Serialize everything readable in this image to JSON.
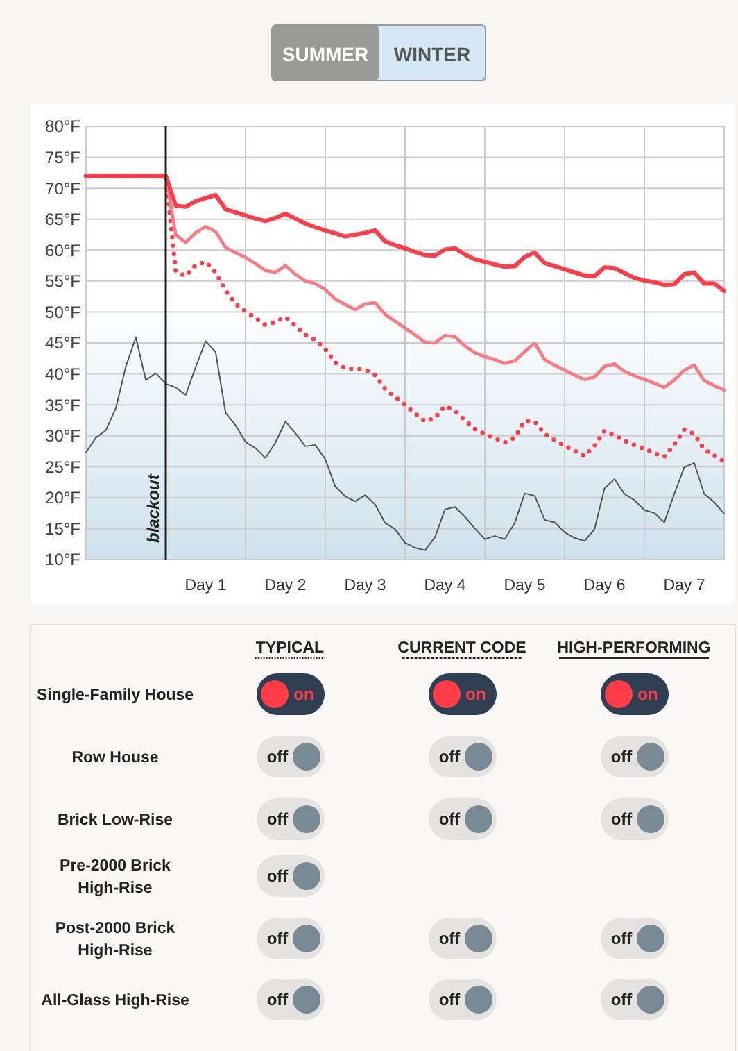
{
  "chart_data": [
    {
      "type": "line",
      "annotations": [
        "SUMMER",
        "WINTER",
        "blackout"
      ],
      "ylim": [
        10,
        80
      ],
      "categories": [
        null,
        null,
        null,
        null,
        null,
        null,
        null,
        null,
        null,
        null,
        null,
        null,
        "Day 1",
        null,
        null,
        null,
        null,
        null,
        null,
        null,
        "Day 2",
        null,
        null,
        null,
        null,
        null,
        null,
        null,
        "Day 3",
        null,
        null,
        null,
        null,
        null,
        null,
        null,
        "Day 4",
        null,
        null,
        null,
        null,
        null,
        null,
        null,
        "Day 5",
        null,
        null,
        null,
        null,
        null,
        null,
        null,
        "Day 6",
        null,
        null,
        null,
        null,
        null,
        null,
        null,
        "Day 7",
        null,
        null,
        null,
        null
      ],
      "yticks": [
        {
          "value": 10,
          "label": "10°F"
        },
        {
          "value": 15,
          "label": "15°F"
        },
        {
          "value": 20,
          "label": "20°F"
        },
        {
          "value": 25,
          "label": "25°F"
        },
        {
          "value": 30,
          "label": "30°F"
        },
        {
          "value": 35,
          "label": "35°F"
        },
        {
          "value": 40,
          "label": "40°F"
        },
        {
          "value": 45,
          "label": "45°F"
        },
        {
          "value": 50,
          "label": "50°F"
        },
        {
          "value": 55,
          "label": "55°F"
        },
        {
          "value": 60,
          "label": "60°F"
        },
        {
          "value": 65,
          "label": "65°F"
        },
        {
          "value": 70,
          "label": "70°F"
        },
        {
          "value": 75,
          "label": "75°F"
        },
        {
          "value": 80,
          "label": "80°F"
        }
      ],
      "grid": true,
      "series": [
        {
          "color": "#ff3c48",
          "line_style": "dotted",
          "values": [
            72,
            72,
            72,
            72,
            72,
            72,
            72,
            72,
            72,
            56.6,
            55.8,
            57.6,
            58.1,
            56.4,
            53.5,
            51.3,
            50.1,
            49.0,
            47.9,
            48.4,
            49.2,
            47.8,
            46.3,
            45.5,
            44.0,
            41.8,
            40.9,
            40.8,
            40.7,
            39.8,
            37.6,
            36.3,
            35.0,
            33.6,
            32.3,
            32.9,
            34.8,
            34.0,
            32.5,
            31.1,
            30.3,
            29.6,
            28.9,
            29.7,
            32.4,
            32.3,
            30.3,
            29.3,
            28.4,
            27.6,
            26.7,
            28.4,
            30.8,
            30.1,
            29.2,
            28.5,
            27.9,
            27.2,
            26.6,
            28.6,
            31.0,
            30.3,
            27.8,
            26.8,
            25.8
          ]
        },
        {
          "color": "#ff7880",
          "line_style": "dashed",
          "values": [
            72,
            72,
            72,
            72,
            72,
            72,
            72,
            72,
            72,
            62.5,
            61.2,
            62.8,
            63.8,
            63.0,
            60.4,
            59.6,
            58.8,
            57.8,
            56.7,
            56.4,
            57.5,
            56.1,
            55.0,
            54.6,
            53.6,
            52.1,
            51.2,
            50.4,
            51.3,
            51.5,
            49.6,
            48.5,
            47.4,
            46.3,
            45.1,
            45.0,
            46.2,
            46.0,
            44.5,
            43.4,
            42.8,
            42.3,
            41.7,
            42.1,
            43.6,
            45.0,
            42.3,
            41.4,
            40.6,
            39.8,
            39.1,
            39.5,
            41.2,
            41.6,
            40.4,
            39.7,
            39.1,
            38.5,
            37.8,
            39.0,
            40.6,
            41.4,
            38.9,
            38.1,
            37.4
          ]
        },
        {
          "color": "#ff3c48",
          "line_style": "solid",
          "values": [
            72,
            72,
            72,
            72,
            72,
            72,
            72,
            72,
            72,
            67.2,
            67.0,
            67.9,
            68.4,
            68.9,
            66.6,
            66.1,
            65.6,
            65.1,
            64.7,
            65.2,
            65.9,
            65.1,
            64.3,
            63.7,
            63.2,
            62.7,
            62.2,
            62.5,
            62.8,
            63.2,
            61.4,
            60.8,
            60.3,
            59.7,
            59.2,
            59.1,
            60.1,
            60.3,
            59.3,
            58.5,
            58.1,
            57.7,
            57.3,
            57.4,
            58.9,
            59.6,
            57.9,
            57.4,
            56.9,
            56.4,
            55.9,
            55.8,
            57.2,
            57.1,
            56.3,
            55.5,
            55.1,
            54.8,
            54.4,
            54.5,
            56.1,
            56.4,
            54.6,
            54.6,
            53.4
          ]
        },
        {
          "color": "#555555",
          "line_style": "solid",
          "values": [
            27.3,
            29.7,
            30.9,
            34.5,
            41.2,
            45.9,
            39.0,
            40.1,
            38.4,
            37.8,
            36.6,
            41.1,
            45.3,
            43.5,
            33.7,
            31.7,
            29.0,
            28.0,
            26.4,
            28.9,
            32.3,
            30.4,
            28.3,
            28.5,
            26.2,
            21.8,
            20.2,
            19.4,
            20.4,
            18.9,
            15.9,
            14.9,
            12.7,
            11.9,
            11.5,
            13.6,
            18.1,
            18.5,
            16.9,
            15.0,
            13.3,
            13.8,
            13.3,
            15.9,
            20.7,
            20.3,
            16.4,
            16.0,
            14.4,
            13.5,
            13.0,
            14.9,
            21.5,
            23.0,
            20.6,
            19.6,
            18.0,
            17.5,
            16.0,
            20.6,
            24.9,
            25.6,
            20.6,
            19.3,
            17.4
          ]
        }
      ]
    },
    {
      "type": "other",
      "categories": [
        "TYPICAL",
        "CURRENT CODE",
        "HIGH-PERFORMING"
      ],
      "y_categories": [
        "Single-Family House",
        "Row House",
        "Brick Low-Rise",
        "Pre-2000 Brick High-Rise",
        "Post-2000 Brick High-Rise",
        "All-Glass High-Rise"
      ],
      "cell_labels": [
        [
          "on",
          "on",
          "on"
        ],
        [
          "off",
          "off",
          "off"
        ],
        [
          "off",
          "off",
          "off"
        ],
        [
          "off",
          null,
          null
        ],
        [
          "off",
          "off",
          "off"
        ],
        [
          "off",
          "off",
          "off"
        ]
      ]
    }
  ]
}
